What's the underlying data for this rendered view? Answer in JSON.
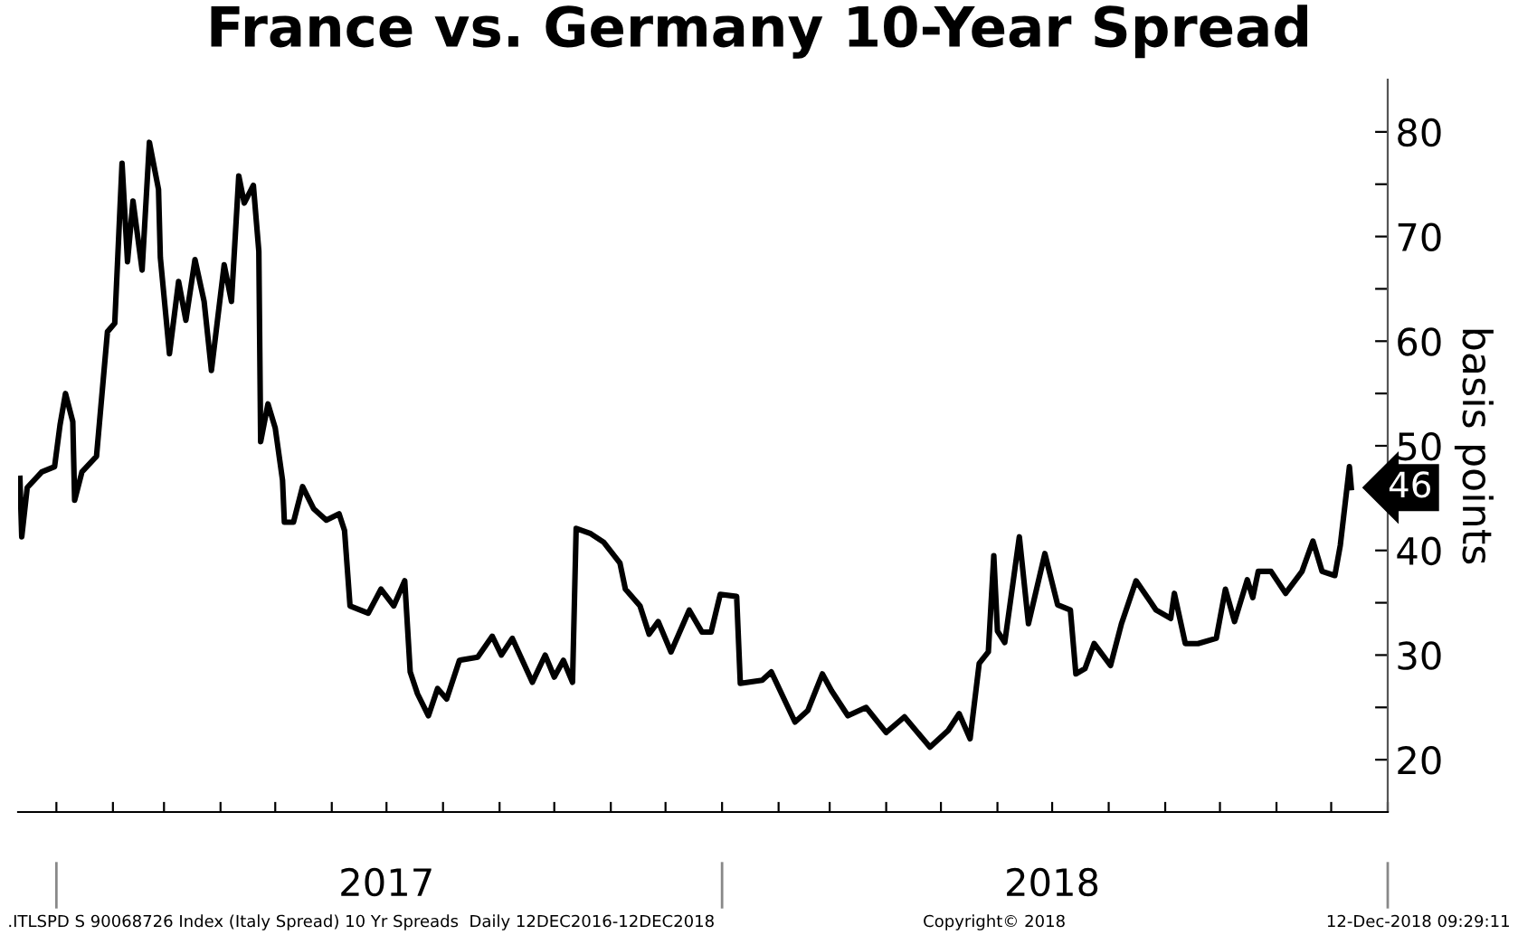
{
  "chart_data": {
    "type": "line",
    "title": "France vs. Germany 10-Year Spread",
    "ylabel": "basis points",
    "x": [
      "2016-12-12",
      "2016-12-13",
      "2016-12-16",
      "2016-12-24",
      "2016-12-31",
      "2017-01-03",
      "2017-01-06",
      "2017-01-10",
      "2017-01-11",
      "2017-01-15",
      "2017-01-23",
      "2017-01-29",
      "2017-02-02",
      "2017-02-06",
      "2017-02-09",
      "2017-02-12",
      "2017-02-17",
      "2017-02-21",
      "2017-02-26",
      "2017-02-27",
      "2017-03-04",
      "2017-03-09",
      "2017-03-13",
      "2017-03-18",
      "2017-03-23",
      "2017-03-27",
      "2017-04-03",
      "2017-04-07",
      "2017-04-11",
      "2017-04-14",
      "2017-04-19",
      "2017-04-22",
      "2017-04-23",
      "2017-04-27",
      "2017-05-01",
      "2017-05-05",
      "2017-05-06",
      "2017-05-11",
      "2017-05-16",
      "2017-05-22",
      "2017-05-29",
      "2017-06-05",
      "2017-06-08",
      "2017-06-11",
      "2017-06-21",
      "2017-06-28",
      "2017-07-05",
      "2017-07-11",
      "2017-07-14",
      "2017-07-18",
      "2017-07-24",
      "2017-07-29",
      "2017-08-03",
      "2017-08-10",
      "2017-08-20",
      "2017-08-28",
      "2017-09-02",
      "2017-09-08",
      "2017-09-19",
      "2017-09-26",
      "2017-10-01",
      "2017-10-06",
      "2017-10-11",
      "2017-10-13",
      "2017-10-21",
      "2017-10-28",
      "2017-11-06",
      "2017-11-09",
      "2017-11-17",
      "2017-11-22",
      "2017-11-27",
      "2017-12-04",
      "2017-12-14",
      "2017-12-21",
      "2017-12-26",
      "2017-12-31",
      "2018-01-09",
      "2018-01-11",
      "2018-01-23",
      "2018-01-28",
      "2018-02-04",
      "2018-02-10",
      "2018-02-17",
      "2018-02-25",
      "2018-03-02",
      "2018-03-11",
      "2018-03-21",
      "2018-04-01",
      "2018-04-11",
      "2018-04-25",
      "2018-05-05",
      "2018-05-11",
      "2018-05-17",
      "2018-05-22",
      "2018-05-27",
      "2018-05-30",
      "2018-06-01",
      "2018-06-05",
      "2018-06-13",
      "2018-06-18",
      "2018-06-27",
      "2018-07-04",
      "2018-07-11",
      "2018-07-14",
      "2018-07-19",
      "2018-07-24",
      "2018-08-02",
      "2018-08-08",
      "2018-08-16",
      "2018-08-27",
      "2018-09-04",
      "2018-09-06",
      "2018-09-12",
      "2018-09-19",
      "2018-09-29",
      "2018-10-04",
      "2018-10-09",
      "2018-10-16",
      "2018-10-19",
      "2018-10-22",
      "2018-10-29",
      "2018-11-06",
      "2018-11-15",
      "2018-11-21",
      "2018-11-26",
      "2018-12-03",
      "2018-12-06",
      "2018-12-11",
      "2018-12-12"
    ],
    "series": [
      {
        "color": "#000000",
        "values": [
          46.9,
          41.3,
          46,
          47.5,
          48,
          52,
          55,
          52.3,
          44.8,
          47.5,
          49,
          60.9,
          61.7,
          77,
          67.6,
          73.4,
          66.8,
          79,
          74.5,
          68,
          58.8,
          65.7,
          62,
          67.8,
          63.8,
          57.2,
          67.3,
          63.8,
          75.8,
          73.2,
          74.9,
          68.6,
          50.4,
          54,
          51.7,
          46.7,
          42.7,
          42.7,
          46.1,
          44,
          42.9,
          43.5,
          41.9,
          34.7,
          34,
          36.3,
          34.7,
          37.1,
          28.4,
          26.3,
          24.2,
          26.8,
          25.8,
          29.5,
          29.8,
          31.8,
          30,
          31.6,
          27.4,
          30,
          27.9,
          29.5,
          27.4,
          42.1,
          41.6,
          40.8,
          38.8,
          36.3,
          34.7,
          32,
          33.2,
          30.3,
          34.3,
          32.2,
          32.2,
          35.8,
          35.6,
          27.3,
          27.6,
          28.4,
          25.8,
          23.6,
          24.7,
          28.2,
          26.6,
          24.2,
          25,
          22.6,
          24.1,
          21.2,
          22.8,
          24.4,
          22,
          29.2,
          30.3,
          39.5,
          32.3,
          31.2,
          41.3,
          33,
          39.7,
          34.8,
          34.3,
          28.2,
          28.7,
          31.1,
          29,
          33,
          37.1,
          34.3,
          33.5,
          35.9,
          31.1,
          31.1,
          31.6,
          36.3,
          33.2,
          37.2,
          35.5,
          38,
          38,
          35.9,
          38,
          40.9,
          38,
          37.6,
          40.5,
          48,
          46
        ]
      }
    ],
    "xlim": [
      "2016-12-11",
      "2019-01-01"
    ],
    "xticks": [
      {
        "value": "2017-01-01",
        "label": null
      },
      {
        "value": "2017-02-01",
        "label": null
      },
      {
        "value": "2017-03-01",
        "label": null
      },
      {
        "value": "2017-04-01",
        "label": null
      },
      {
        "value": "2017-05-01",
        "label": null
      },
      {
        "value": "2017-06-01",
        "label": null
      },
      {
        "value": "2017-07-01",
        "label": "2017"
      },
      {
        "value": "2017-08-01",
        "label": null
      },
      {
        "value": "2017-09-01",
        "label": null
      },
      {
        "value": "2017-10-01",
        "label": null
      },
      {
        "value": "2017-11-01",
        "label": null
      },
      {
        "value": "2017-12-01",
        "label": null
      },
      {
        "value": "2018-01-01",
        "label": null
      },
      {
        "value": "2018-02-01",
        "label": null
      },
      {
        "value": "2018-03-01",
        "label": null
      },
      {
        "value": "2018-04-01",
        "label": null
      },
      {
        "value": "2018-05-01",
        "label": null
      },
      {
        "value": "2018-06-01",
        "label": null
      },
      {
        "value": "2018-07-01",
        "label": "2018"
      },
      {
        "value": "2018-08-01",
        "label": null
      },
      {
        "value": "2018-09-01",
        "label": null
      },
      {
        "value": "2018-10-01",
        "label": null
      },
      {
        "value": "2018-11-01",
        "label": null
      },
      {
        "value": "2018-12-01",
        "label": null
      },
      {
        "value": "2019-01-01",
        "label": null
      }
    ],
    "ylim": [
      15,
      85
    ],
    "yticks": [
      20,
      {
        "value": 25,
        "label": null
      },
      30,
      {
        "value": 35,
        "label": null
      },
      40,
      {
        "value": 45,
        "label": null
      },
      50,
      {
        "value": 55,
        "label": null
      },
      60,
      {
        "value": 65,
        "label": null
      },
      70,
      {
        "value": 75,
        "label": null
      },
      80
    ],
    "grid": false,
    "legend": false,
    "marker": "none",
    "line_style": "solid",
    "annotations": [
      {
        "text": "46",
        "x": "2018-12-12",
        "y": 46
      },
      ".ITLSPD S 90068726 Index (Italy Spread) 10 Yr Spreads  Daily 12DEC2016-12DEC2018",
      "Copyright© 2018",
      "12-Dec-2018 09:29:11"
    ]
  }
}
